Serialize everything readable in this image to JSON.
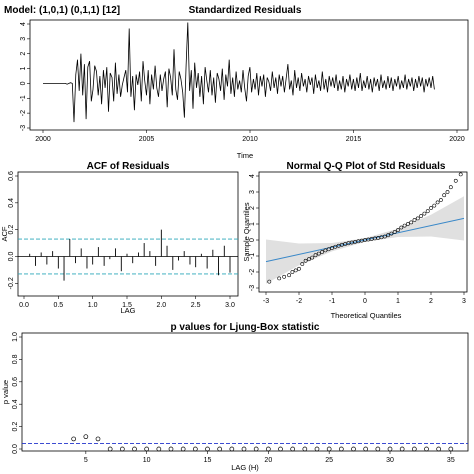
{
  "model_label": "Model: (1,0,1) (0,1,1) [12]",
  "chart_data": [
    {
      "type": "line",
      "title": "Standardized Residuals",
      "xlabel": "Time",
      "ylabel": "",
      "xlim": [
        2000,
        2020
      ],
      "ylim": [
        -3,
        4
      ],
      "x_ticks": [
        "2000",
        "2005",
        "2010",
        "2015",
        "2020"
      ],
      "y_ticks": [
        "-3",
        "-2",
        "-1",
        "0",
        "1",
        "2",
        "3",
        "4"
      ],
      "start": 2000,
      "step": 0.0833,
      "values": [
        0,
        0,
        0,
        0,
        0,
        0,
        0,
        0,
        0,
        0,
        0,
        0,
        0,
        0,
        -0.05,
        0,
        0.05,
        0,
        -2.6,
        0.6,
        1.6,
        -0.5,
        2.0,
        -0.8,
        1.3,
        -2.4,
        1.1,
        1.5,
        -1.2,
        -0.4,
        1.2,
        0.8,
        -0.8,
        0.5,
        -1.4,
        0.9,
        -0.3,
        1.1,
        -1.9,
        0.7,
        0.4,
        -1.2,
        1.4,
        -0.7,
        0.6,
        -0.9,
        -0.1,
        0.4,
        0.9,
        -0.6,
        3.7,
        -0.9,
        0.5,
        -1.8,
        0.6,
        -0.1,
        0.8,
        -1.2,
        1.5,
        0.2,
        -0.8,
        0.9,
        -1.4,
        0.6,
        -0.4,
        1.2,
        -0.3,
        -0.9,
        0.6,
        -0.5,
        0.3,
        0.8,
        -1.6,
        1.0,
        0.4,
        -0.8,
        2.3,
        -0.4,
        -1.1,
        0.8,
        0.3,
        -0.6,
        -2.3,
        1.2,
        4.1,
        -0.5,
        0.9,
        -1.7,
        1.4,
        -0.3,
        0.7,
        -0.9,
        0.5,
        -1.4,
        1.1,
        0.2,
        -0.6,
        0.9,
        -0.8,
        0.4,
        -1.3,
        0.7,
        0.3,
        -0.5,
        1.0,
        -1.1,
        0.6,
        -0.2,
        1.6,
        -0.7,
        0.4,
        -0.9,
        0.8,
        -0.4,
        0.2,
        -0.6,
        0.9,
        -0.3,
        -1.2,
        0.5,
        1.1,
        -0.6,
        0.3,
        -0.4,
        0.7,
        -0.8,
        0.5,
        -0.2,
        0.6,
        -0.9,
        0.4,
        0.1,
        -0.5,
        0.8,
        -0.3,
        0.4,
        -0.7,
        0.6,
        -0.2,
        0.5,
        -0.6,
        0.3,
        1.3,
        -0.4,
        0.2,
        -0.8,
        0.9,
        -0.3,
        0.4,
        -0.5,
        0.7,
        -0.2,
        0.3,
        -0.6,
        0.5,
        -0.1,
        0.4,
        -0.7,
        0.6,
        -0.3,
        0.2,
        -0.5,
        0.8,
        -0.4,
        0.3,
        -0.6,
        0.5,
        -0.2,
        0.4,
        -0.3,
        0.6,
        -0.5,
        0.2,
        -0.4,
        0.5,
        -0.6,
        0.3,
        -0.2,
        0.6,
        -0.4,
        0.3,
        -0.5,
        0.4,
        -0.3,
        0.7,
        -0.5,
        0.2,
        -0.3,
        0.5,
        -0.4,
        0.3,
        -0.6,
        0.4,
        -0.2,
        0.3,
        -0.5,
        0.6,
        -0.3,
        0.2,
        -0.4,
        0.5,
        -0.3,
        0.4,
        -0.5,
        0.3,
        -0.2,
        0.5,
        -0.4,
        0.2,
        -0.3,
        0.6,
        -0.4,
        0.3,
        -0.2,
        0.4,
        -0.5,
        0.3,
        -0.3,
        0.5,
        -0.2,
        0.4,
        -0.6,
        0.3,
        -0.2,
        0.4,
        -0.3,
        0.5,
        -0.4
      ]
    },
    {
      "type": "bar",
      "title": "ACF of Residuals",
      "xlabel": "LAG",
      "ylabel": "ACF",
      "xlim": [
        0,
        3.0
      ],
      "ylim": [
        -0.25,
        0.6
      ],
      "x_ticks": [
        "0.0",
        "0.5",
        "1.0",
        "1.5",
        "2.0",
        "2.5",
        "3.0"
      ],
      "y_ticks": [
        "-0.2",
        "0.0",
        "0.2",
        "0.4",
        "0.6"
      ],
      "lags": [
        0.083,
        0.167,
        0.25,
        0.333,
        0.417,
        0.5,
        0.583,
        0.667,
        0.75,
        0.833,
        0.917,
        1.0,
        1.083,
        1.167,
        1.25,
        1.333,
        1.417,
        1.5,
        1.583,
        1.667,
        1.75,
        1.833,
        1.917,
        2.0,
        2.083,
        2.167,
        2.25,
        2.333,
        2.417,
        2.5,
        2.583,
        2.667,
        2.75,
        2.833,
        2.917,
        3.0
      ],
      "values": [
        0.02,
        -0.07,
        0.03,
        -0.06,
        0.04,
        -0.09,
        -0.18,
        0.13,
        -0.05,
        0.06,
        -0.09,
        -0.06,
        0.07,
        -0.07,
        -0.02,
        0.06,
        -0.11,
        0.02,
        -0.05,
        0.03,
        0.1,
        0.04,
        -0.07,
        0.2,
        0.08,
        -0.1,
        -0.03,
        0.04,
        -0.06,
        -0.08,
        0.02,
        -0.09,
        0.05,
        -0.14,
        0.08,
        -0.12
      ],
      "conf_bounds": [
        -0.13,
        0.13
      ]
    },
    {
      "type": "scatter",
      "title": "Normal Q-Q Plot of Std Residuals",
      "xlabel": "Theoretical Quantiles",
      "ylabel": "Sample Quantiles",
      "xlim": [
        -3,
        3
      ],
      "ylim": [
        -3,
        4
      ],
      "x_ticks": [
        "-3",
        "-2",
        "-1",
        "0",
        "1",
        "2",
        "3"
      ],
      "y_ticks": [
        "-3",
        "-2",
        "-1",
        "0",
        "1",
        "2",
        "3",
        "4"
      ],
      "points_theoretical": [
        -2.9,
        -2.6,
        -2.45,
        -2.3,
        -2.2,
        -2.1,
        -2.0,
        -1.9,
        -1.8,
        -1.7,
        -1.6,
        -1.5,
        -1.4,
        -1.3,
        -1.2,
        -1.1,
        -1.0,
        -0.9,
        -0.8,
        -0.7,
        -0.6,
        -0.5,
        -0.4,
        -0.3,
        -0.2,
        -0.1,
        0.0,
        0.1,
        0.2,
        0.3,
        0.4,
        0.5,
        0.6,
        0.7,
        0.8,
        0.9,
        1.0,
        1.1,
        1.2,
        1.3,
        1.4,
        1.5,
        1.6,
        1.7,
        1.8,
        1.9,
        2.0,
        2.1,
        2.2,
        2.3,
        2.4,
        2.5,
        2.6,
        2.75,
        2.9
      ],
      "points_sample": [
        -2.6,
        -2.4,
        -2.3,
        -2.2,
        -2.0,
        -1.9,
        -1.8,
        -1.5,
        -1.3,
        -1.2,
        -1.1,
        -0.95,
        -0.85,
        -0.75,
        -0.65,
        -0.58,
        -0.5,
        -0.42,
        -0.36,
        -0.3,
        -0.25,
        -0.2,
        -0.16,
        -0.12,
        -0.08,
        -0.04,
        0.0,
        0.03,
        0.06,
        0.1,
        0.13,
        0.17,
        0.22,
        0.3,
        0.4,
        0.5,
        0.62,
        0.78,
        0.9,
        1.0,
        1.1,
        1.25,
        1.35,
        1.5,
        1.65,
        1.8,
        2.0,
        2.15,
        2.35,
        2.5,
        2.8,
        3.0,
        3.3,
        3.7,
        4.1
      ],
      "ref_line": {
        "intercept": 0.0,
        "slope": 0.45
      }
    },
    {
      "type": "scatter",
      "title": "p values for Ljung-Box statistic",
      "xlabel": "LAG (H)",
      "ylabel": "p value",
      "xlim": [
        0,
        36
      ],
      "ylim": [
        0,
        1.0
      ],
      "x_ticks": [
        "5",
        "10",
        "15",
        "20",
        "25",
        "30",
        "35"
      ],
      "y_ticks": [
        "0.0",
        "0.2",
        "0.4",
        "0.6",
        "0.8",
        "1.0"
      ],
      "lags": [
        4,
        5,
        6,
        7,
        8,
        9,
        10,
        11,
        12,
        13,
        14,
        15,
        16,
        17,
        18,
        19,
        20,
        21,
        22,
        23,
        24,
        25,
        26,
        27,
        28,
        29,
        30,
        31,
        32,
        33,
        34,
        35
      ],
      "values": [
        0.09,
        0.11,
        0.09,
        0.0,
        0.0,
        0.0,
        0.0,
        0.0,
        0.0,
        0.0,
        0.0,
        0.0,
        0.0,
        0.0,
        0.0,
        0.0,
        0.0,
        0.0,
        0.0,
        0.0,
        0.0,
        0.0,
        0.0,
        0.0,
        0.0,
        0.0,
        0.0,
        0.0,
        0.0,
        0.0,
        0.0,
        0.0
      ],
      "significance": 0.05
    }
  ]
}
